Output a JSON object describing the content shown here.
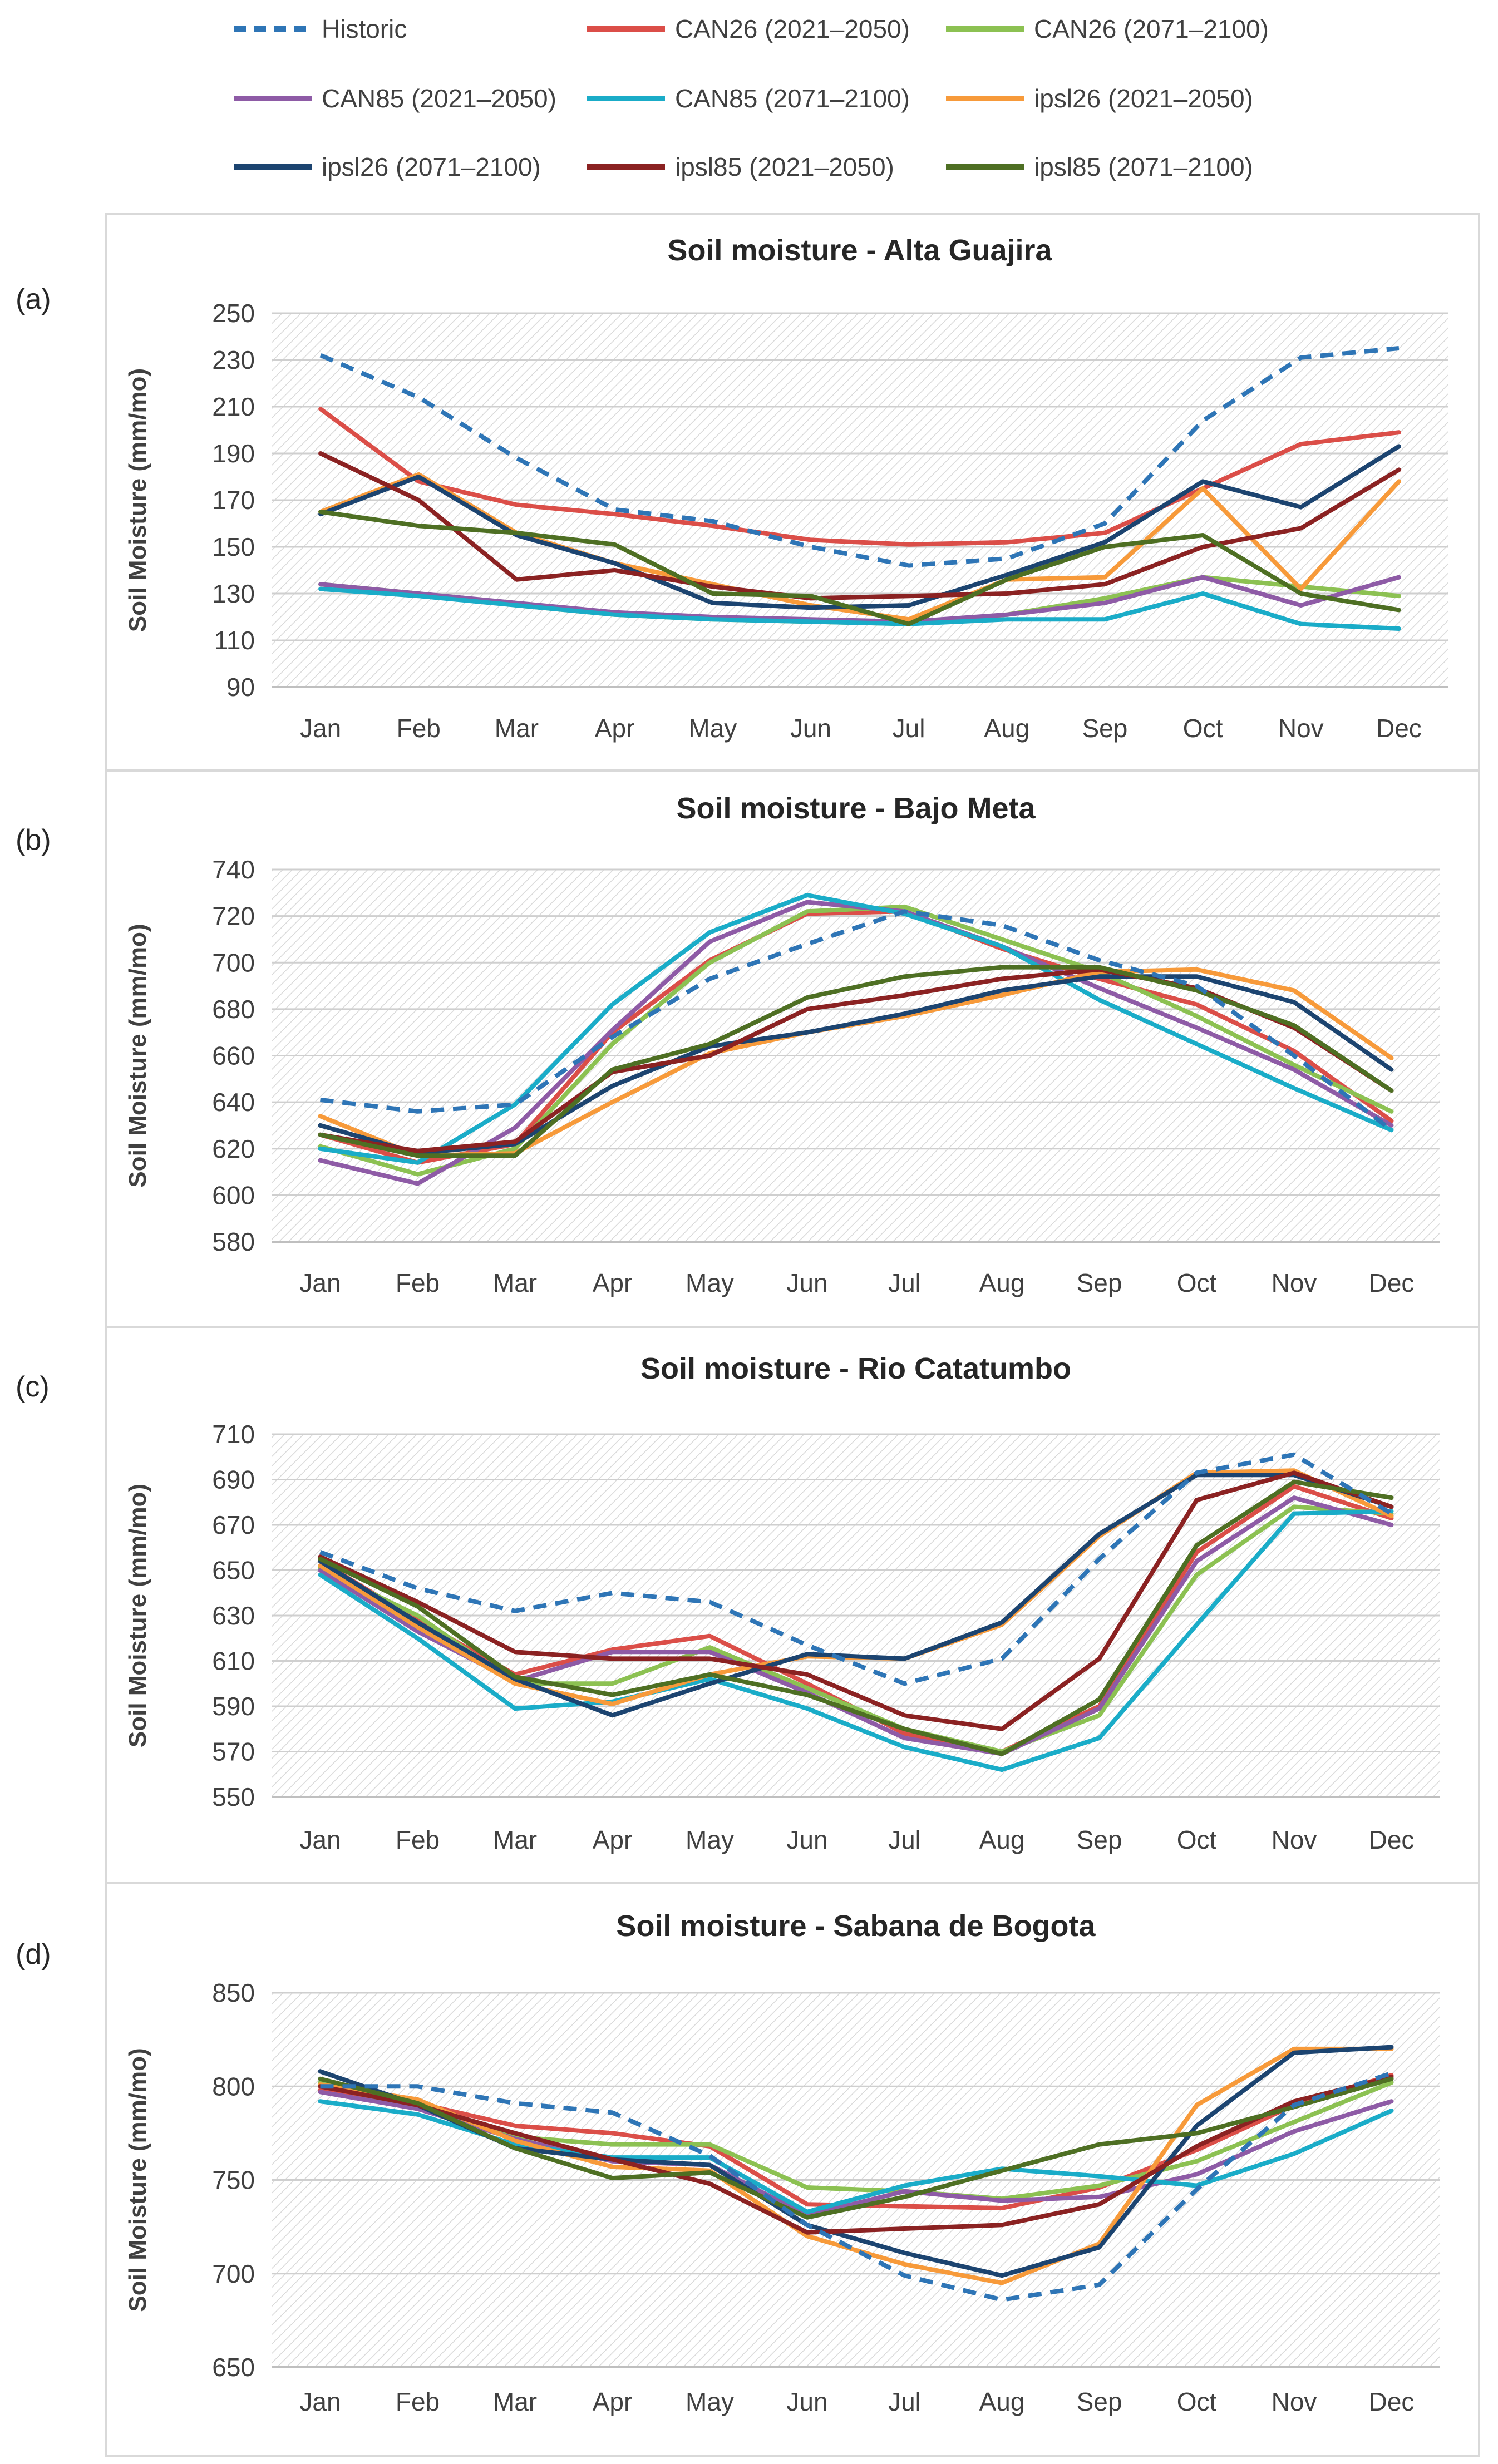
{
  "legend": [
    {
      "name": "Historic",
      "color": "#2E75B6",
      "dash": true
    },
    {
      "name": "CAN26 (2021–2050)",
      "color": "#DB4E48",
      "dash": false
    },
    {
      "name": "CAN26 (2071–2100)",
      "color": "#8CC152",
      "dash": false
    },
    {
      "name": "CAN85 (2021–2050)",
      "color": "#8E5BA6",
      "dash": false
    },
    {
      "name": "CAN85 (2071–2100)",
      "color": "#1AACC8",
      "dash": false
    },
    {
      "name": "ipsl26 (2021–2050)",
      "color": "#F79A3A",
      "dash": false
    },
    {
      "name": "ipsl26 (2071–2100)",
      "color": "#1C4470",
      "dash": false
    },
    {
      "name": "ipsl85 (2021–2050)",
      "color": "#8B2222",
      "dash": false
    },
    {
      "name": "ipsl85 (2071–2100)",
      "color": "#4E6F23",
      "dash": false
    }
  ],
  "chart_data": [
    {
      "panel": "(a)",
      "type": "line",
      "title": "Soil moisture - Alta Guajira",
      "ylabel": "Soil Moisture (mm/mo)",
      "xlabel": "",
      "ylim": [
        90,
        250
      ],
      "yticks": [
        90,
        110,
        130,
        150,
        170,
        190,
        210,
        230,
        250
      ],
      "categories": [
        "Jan",
        "Feb",
        "Mar",
        "Apr",
        "May",
        "Jun",
        "Jul",
        "Aug",
        "Sep",
        "Oct",
        "Nov",
        "Dec"
      ],
      "series": [
        {
          "name": "Historic",
          "values": [
            232,
            214,
            188,
            166,
            161,
            150,
            142,
            145,
            160,
            204,
            231,
            235
          ]
        },
        {
          "name": "CAN26 (2021–2050)",
          "values": [
            209,
            178,
            168,
            164,
            159,
            153,
            151,
            152,
            156,
            175,
            194,
            199
          ]
        },
        {
          "name": "CAN26 (2071–2100)",
          "values": [
            134,
            130,
            125,
            121,
            119,
            118,
            117,
            121,
            128,
            137,
            133,
            129
          ]
        },
        {
          "name": "CAN85 (2021–2050)",
          "values": [
            134,
            130,
            126,
            122,
            120,
            119,
            118,
            121,
            126,
            137,
            125,
            137
          ]
        },
        {
          "name": "CAN85 (2071–2100)",
          "values": [
            132,
            129,
            125,
            121,
            119,
            118,
            117,
            119,
            119,
            130,
            117,
            115
          ]
        },
        {
          "name": "ipsl26 (2021–2050)",
          "values": [
            165,
            181,
            156,
            143,
            134,
            125,
            119,
            136,
            137,
            175,
            132,
            178
          ]
        },
        {
          "name": "ipsl26 (2071–2100)",
          "values": [
            164,
            180,
            155,
            143,
            126,
            124,
            125,
            138,
            152,
            178,
            167,
            193
          ]
        },
        {
          "name": "ipsl85 (2021–2050)",
          "values": [
            190,
            170,
            136,
            140,
            133,
            128,
            129,
            130,
            134,
            150,
            158,
            183
          ]
        },
        {
          "name": "ipsl85 (2071–2100)",
          "values": [
            165,
            159,
            156,
            151,
            130,
            129,
            117,
            136,
            150,
            155,
            130,
            123
          ]
        }
      ]
    },
    {
      "panel": "(b)",
      "type": "line",
      "title": "Soil moisture - Bajo Meta",
      "ylabel": "Soil Moisture (mm/mo)",
      "xlabel": "",
      "ylim": [
        580,
        740
      ],
      "yticks": [
        580,
        600,
        620,
        640,
        660,
        680,
        700,
        720,
        740
      ],
      "categories": [
        "Jan",
        "Feb",
        "Mar",
        "Apr",
        "May",
        "Jun",
        "Jul",
        "Aug",
        "Sep",
        "Oct",
        "Nov",
        "Dec"
      ],
      "series": [
        {
          "name": "Historic",
          "values": [
            641,
            636,
            639,
            668,
            693,
            708,
            722,
            716,
            701,
            690,
            660,
            628
          ]
        },
        {
          "name": "CAN26 (2021–2050)",
          "values": [
            626,
            614,
            622,
            670,
            701,
            721,
            722,
            706,
            693,
            682,
            662,
            632
          ]
        },
        {
          "name": "CAN26 (2071–2100)",
          "values": [
            621,
            609,
            620,
            665,
            700,
            722,
            724,
            710,
            696,
            677,
            656,
            636
          ]
        },
        {
          "name": "CAN85 (2021–2050)",
          "values": [
            615,
            605,
            629,
            671,
            709,
            726,
            722,
            707,
            689,
            672,
            654,
            630
          ]
        },
        {
          "name": "CAN85 (2071–2100)",
          "values": [
            620,
            614,
            639,
            682,
            713,
            729,
            721,
            707,
            684,
            665,
            646,
            628
          ]
        },
        {
          "name": "ipsl26 (2021–2050)",
          "values": [
            634,
            617,
            618,
            640,
            661,
            670,
            677,
            686,
            696,
            697,
            688,
            659
          ]
        },
        {
          "name": "ipsl26 (2071–2100)",
          "values": [
            630,
            618,
            622,
            647,
            664,
            670,
            678,
            688,
            694,
            694,
            683,
            654
          ]
        },
        {
          "name": "ipsl85 (2021–2050)",
          "values": [
            626,
            619,
            623,
            653,
            660,
            680,
            686,
            693,
            697,
            689,
            672,
            645
          ]
        },
        {
          "name": "ipsl85 (2071–2100)",
          "values": [
            626,
            617,
            617,
            654,
            665,
            685,
            694,
            698,
            698,
            688,
            673,
            645
          ]
        }
      ]
    },
    {
      "panel": "(c)",
      "type": "line",
      "title": "Soil moisture - Rio Catatumbo",
      "ylabel": "Soil Moisture (mm/mo)",
      "xlabel": "",
      "ylim": [
        550,
        710
      ],
      "yticks": [
        550,
        570,
        590,
        610,
        630,
        650,
        670,
        690,
        710
      ],
      "categories": [
        "Jan",
        "Feb",
        "Mar",
        "Apr",
        "May",
        "Jun",
        "Jul",
        "Aug",
        "Sep",
        "Oct",
        "Nov",
        "Dec"
      ],
      "series": [
        {
          "name": "Historic",
          "values": [
            658,
            642,
            632,
            640,
            636,
            617,
            600,
            611,
            655,
            693,
            701,
            675
          ]
        },
        {
          "name": "CAN26 (2021–2050)",
          "values": [
            654,
            628,
            604,
            615,
            621,
            600,
            578,
            570,
            590,
            658,
            687,
            673
          ]
        },
        {
          "name": "CAN26 (2071–2100)",
          "values": [
            651,
            630,
            600,
            600,
            616,
            598,
            580,
            570,
            586,
            648,
            678,
            675
          ]
        },
        {
          "name": "CAN85 (2021–2050)",
          "values": [
            650,
            623,
            601,
            614,
            614,
            596,
            576,
            569,
            589,
            654,
            682,
            670
          ]
        },
        {
          "name": "CAN85 (2071–2100)",
          "values": [
            648,
            620,
            589,
            592,
            602,
            589,
            572,
            562,
            576,
            626,
            675,
            676
          ]
        },
        {
          "name": "ipsl26 (2021–2050)",
          "values": [
            652,
            625,
            600,
            591,
            604,
            612,
            611,
            626,
            665,
            693,
            694,
            674
          ]
        },
        {
          "name": "ipsl26 (2071–2100)",
          "values": [
            654,
            627,
            602,
            586,
            600,
            613,
            611,
            627,
            666,
            692,
            692,
            678
          ]
        },
        {
          "name": "ipsl85 (2021–2050)",
          "values": [
            656,
            636,
            614,
            611,
            611,
            604,
            586,
            580,
            611,
            681,
            693,
            678
          ]
        },
        {
          "name": "ipsl85 (2071–2100)",
          "values": [
            655,
            634,
            603,
            595,
            604,
            595,
            580,
            569,
            593,
            661,
            689,
            682
          ]
        }
      ]
    },
    {
      "panel": "(d)",
      "type": "line",
      "title": "Soil moisture - Sabana de Bogota",
      "ylabel": "Soil Moisture (mm/mo)",
      "xlabel": "",
      "ylim": [
        650,
        850
      ],
      "yticks": [
        650,
        700,
        750,
        800,
        850
      ],
      "categories": [
        "Jan",
        "Feb",
        "Mar",
        "Apr",
        "May",
        "Jun",
        "Jul",
        "Aug",
        "Sep",
        "Oct",
        "Nov",
        "Dec"
      ],
      "series": [
        {
          "name": "Historic",
          "values": [
            800,
            800,
            791,
            786,
            763,
            726,
            699,
            686,
            694,
            745,
            790,
            807
          ]
        },
        {
          "name": "CAN26 (2021–2050)",
          "values": [
            798,
            791,
            779,
            775,
            768,
            737,
            736,
            735,
            746,
            766,
            790,
            806
          ]
        },
        {
          "name": "CAN26 (2071–2100)",
          "values": [
            802,
            788,
            773,
            769,
            769,
            746,
            744,
            740,
            747,
            760,
            781,
            802
          ]
        },
        {
          "name": "CAN85 (2021–2050)",
          "values": [
            797,
            788,
            772,
            760,
            758,
            731,
            744,
            739,
            741,
            753,
            776,
            792
          ]
        },
        {
          "name": "CAN85 (2071–2100)",
          "values": [
            792,
            785,
            769,
            762,
            762,
            733,
            747,
            756,
            752,
            747,
            764,
            787
          ]
        },
        {
          "name": "ipsl26 (2021–2050)",
          "values": [
            801,
            793,
            771,
            757,
            755,
            720,
            705,
            695,
            716,
            790,
            820,
            820
          ]
        },
        {
          "name": "ipsl26 (2071–2100)",
          "values": [
            808,
            790,
            767,
            761,
            758,
            726,
            711,
            699,
            714,
            779,
            818,
            821
          ]
        },
        {
          "name": "ipsl85 (2021–2050)",
          "values": [
            800,
            790,
            775,
            761,
            748,
            722,
            724,
            726,
            737,
            768,
            792,
            805
          ]
        },
        {
          "name": "ipsl85 (2071–2100)",
          "values": [
            804,
            791,
            767,
            751,
            754,
            730,
            741,
            755,
            769,
            775,
            789,
            804
          ]
        }
      ]
    }
  ]
}
